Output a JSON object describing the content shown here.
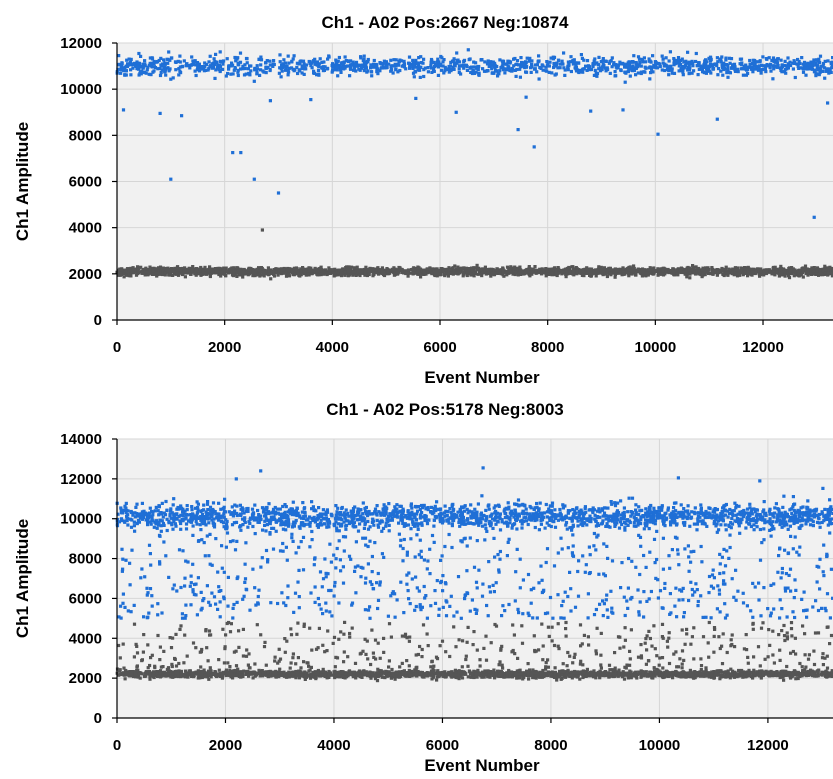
{
  "chart_data": [
    {
      "type": "scatter",
      "title": "Ch1 - A02 Pos:2667 Neg:10874",
      "xlabel": "Event Number",
      "ylabel": "Ch1 Amplitude",
      "xlim": [
        0,
        13300
      ],
      "ylim": [
        0,
        12000
      ],
      "xticks": [
        0,
        2000,
        4000,
        6000,
        8000,
        10000,
        12000
      ],
      "yticks": [
        0,
        2000,
        4000,
        6000,
        8000,
        10000,
        12000
      ],
      "grid": true,
      "legend": "none",
      "series": [
        {
          "color": "#1f6fd6",
          "cluster": {
            "center": 11000,
            "spread": 420,
            "count": 1400
          },
          "outliers": [
            [
              120,
              9100
            ],
            [
              800,
              8950
            ],
            [
              1000,
              6100
            ],
            [
              1200,
              8850
            ],
            [
              2150,
              7250
            ],
            [
              2300,
              7250
            ],
            [
              2550,
              6100
            ],
            [
              2850,
              9500
            ],
            [
              3000,
              5500
            ],
            [
              3600,
              9550
            ],
            [
              5550,
              9600
            ],
            [
              6300,
              9000
            ],
            [
              7450,
              8250
            ],
            [
              7750,
              7500
            ],
            [
              7600,
              9650
            ],
            [
              8800,
              9050
            ],
            [
              9400,
              9100
            ],
            [
              10050,
              8050
            ],
            [
              11150,
              8700
            ],
            [
              12950,
              4450
            ],
            [
              13200,
              9400
            ]
          ]
        },
        {
          "color": "#555555",
          "cluster": {
            "center": 2100,
            "spread": 170,
            "count": 2600
          },
          "outliers": [
            [
              2700,
              3900
            ]
          ]
        }
      ]
    },
    {
      "type": "scatter",
      "title": "Ch1 - A02 Pos:5178 Neg:8003",
      "xlabel": "Event Number",
      "ylabel": "Ch1 Amplitude",
      "xlim": [
        0,
        13200
      ],
      "ylim": [
        0,
        14000
      ],
      "xticks": [
        0,
        2000,
        4000,
        6000,
        8000,
        10000,
        12000
      ],
      "yticks": [
        0,
        2000,
        4000,
        6000,
        8000,
        10000,
        12000,
        14000
      ],
      "grid": true,
      "legend": "none",
      "series": [
        {
          "color": "#1f6fd6",
          "cluster": {
            "center": 10100,
            "spread": 650,
            "count": 1900
          },
          "tail": {
            "low": 5000,
            "high": 9200,
            "count": 650
          },
          "outliers": [
            [
              2650,
              12400
            ],
            [
              6750,
              12550
            ],
            [
              2200,
              12000
            ],
            [
              11850,
              11900
            ],
            [
              10350,
              12050
            ]
          ]
        },
        {
          "color": "#555555",
          "cluster": {
            "center": 2200,
            "spread": 180,
            "count": 2200
          },
          "tail": {
            "low": 2500,
            "high": 4800,
            "count": 420
          },
          "outliers": []
        }
      ]
    }
  ]
}
